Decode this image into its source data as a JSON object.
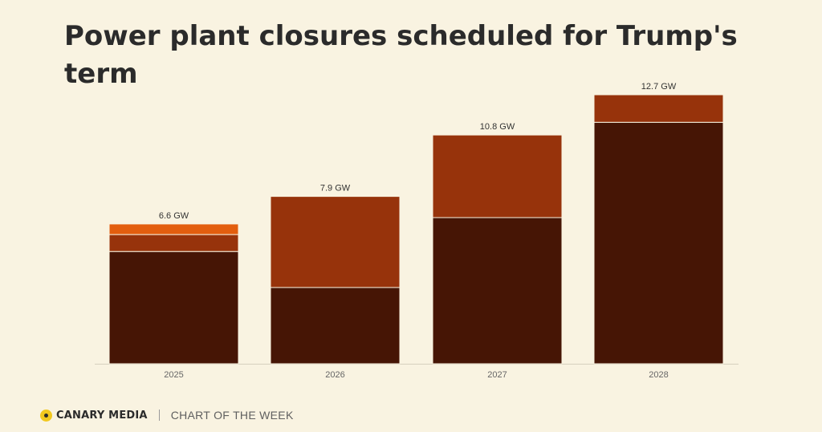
{
  "title": "Power plant closures scheduled for Trump's term",
  "footer": {
    "brand": "CANARY MEDIA",
    "tagline": "CHART OF THE WEEK"
  },
  "colors": {
    "background": "#f9f3e1",
    "segment_dark": "#461505",
    "segment_mid": "#97330b",
    "segment_bright": "#e35e0e",
    "logo_yellow": "#f2c81e"
  },
  "chart_data": {
    "type": "bar",
    "stacked": true,
    "title": "Power plant closures scheduled for Trump's term",
    "categories": [
      "2025",
      "2026",
      "2027",
      "2028"
    ],
    "series": [
      {
        "color": "#461505",
        "values": [
          5.3,
          3.6,
          6.9,
          11.4
        ]
      },
      {
        "color": "#97330b",
        "values": [
          0.8,
          4.3,
          3.9,
          1.3
        ]
      },
      {
        "color": "#e35e0e",
        "values": [
          0.5,
          0,
          0,
          0
        ]
      }
    ],
    "totals": [
      6.6,
      7.9,
      10.8,
      12.7
    ],
    "total_labels": [
      "6.6 GW",
      "7.9 GW",
      "10.8 GW",
      "12.7 GW"
    ],
    "ylim": [
      0,
      12.7
    ],
    "grid": false,
    "legend": "none"
  }
}
